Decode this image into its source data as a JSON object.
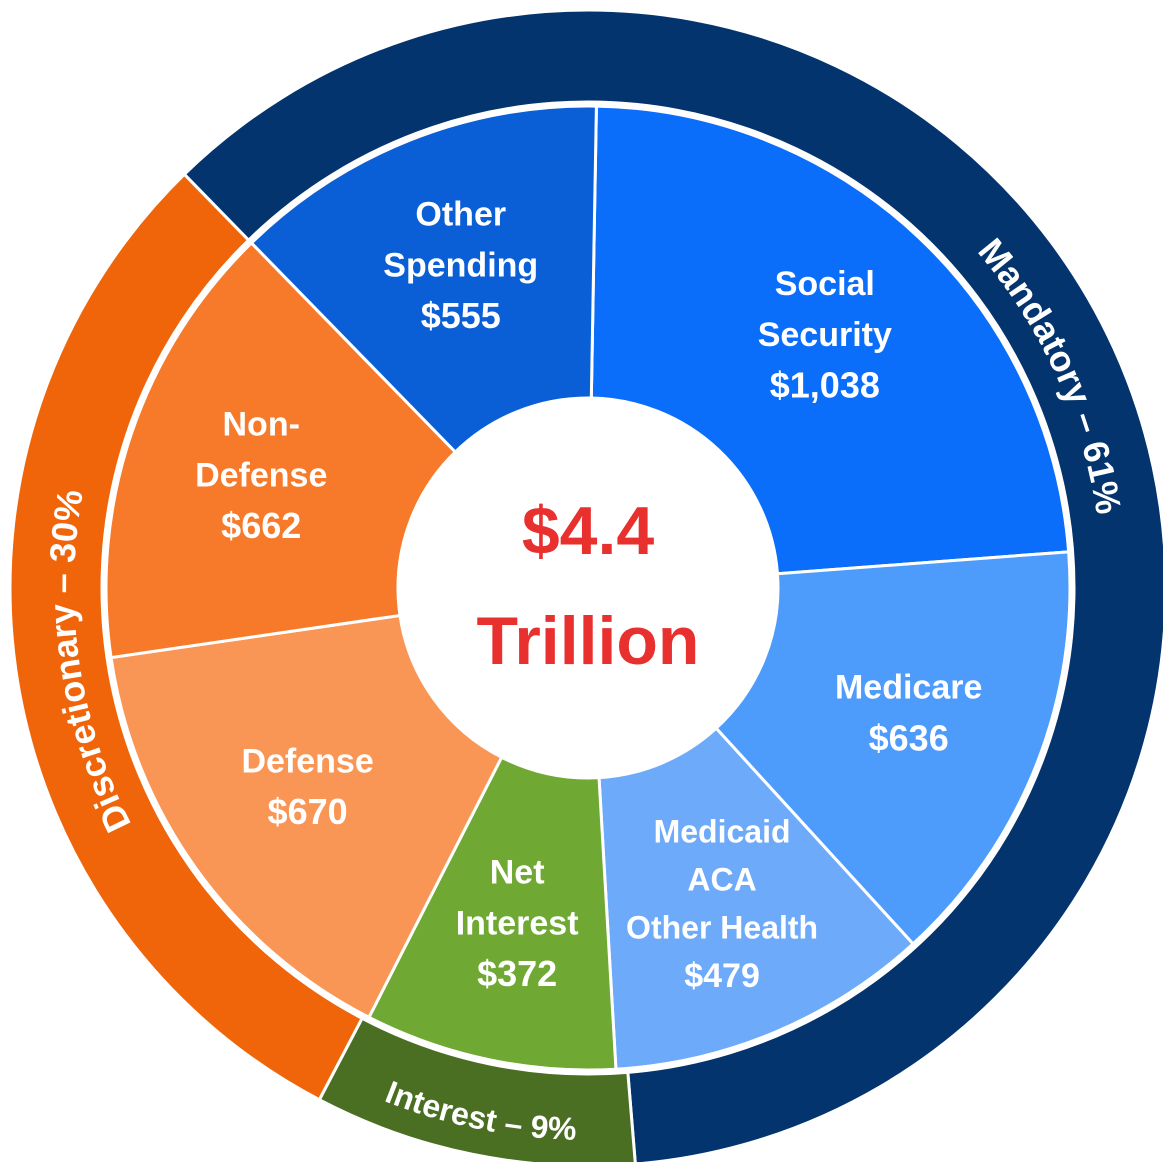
{
  "chart_data": {
    "type": "sunburst",
    "center_label": [
      "$4.4",
      "Trillion"
    ],
    "inner": {
      "labels": [
        [
          "Social",
          "Security"
        ],
        [
          "Medicare"
        ],
        [
          "Medicaid",
          "ACA",
          "Other Health"
        ],
        [
          "Net",
          "Interest"
        ],
        [
          "Defense"
        ],
        [
          "Non-",
          "Defense"
        ],
        [
          "Other",
          "Spending"
        ]
      ],
      "values": [
        1038,
        636,
        479,
        372,
        670,
        662,
        555
      ],
      "value_labels": [
        "$1,038",
        "$636",
        "$479",
        "$372",
        "$670",
        "$662",
        "$555"
      ],
      "colors": [
        "#0a6efa",
        "#4d9bfb",
        "#6eaafa",
        "#6fa832",
        "#fa9655",
        "#f77a2a",
        "#0a5fd6"
      ]
    },
    "outer": {
      "values": [
        61,
        9,
        30
      ],
      "value_labels": [
        "Mandatory – 61%",
        "Interest – 9%",
        "Discretionary – 30%"
      ],
      "colors": [
        "#03346e",
        "#4a6e22",
        "#f0650a"
      ]
    }
  }
}
